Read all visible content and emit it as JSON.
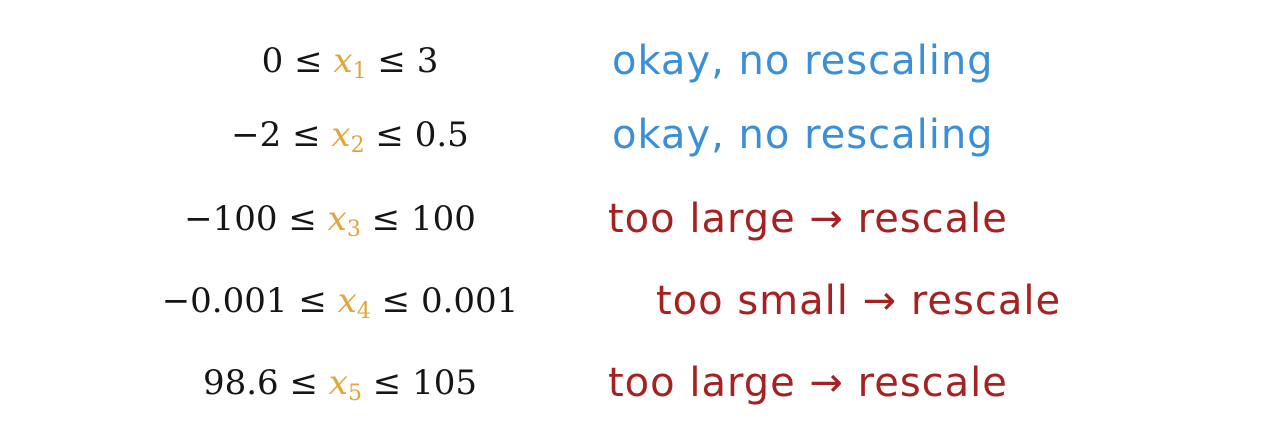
{
  "rows": [
    {
      "lower": "0",
      "var": "x",
      "sub": "1",
      "upper": "3",
      "note": "okay, no rescaling",
      "note_color": "#3b8fd8"
    },
    {
      "lower": "−2",
      "var": "x",
      "sub": "2",
      "upper": "0.5",
      "note": "okay, no rescaling",
      "note_color": "#3b8fd8"
    },
    {
      "lower": "−100",
      "var": "x",
      "sub": "3",
      "upper": "100",
      "note": "too large → rescale",
      "note_color": "#a52222"
    },
    {
      "lower": "−0.001",
      "var": "x",
      "sub": "4",
      "upper": "0.001",
      "note": "too small → rescale",
      "note_color": "#a52222"
    },
    {
      "lower": "98.6",
      "var": "x",
      "sub": "5",
      "upper": "105",
      "note": "too large → rescale",
      "note_color": "#a52222"
    }
  ],
  "symbols": {
    "leq": "≤"
  }
}
